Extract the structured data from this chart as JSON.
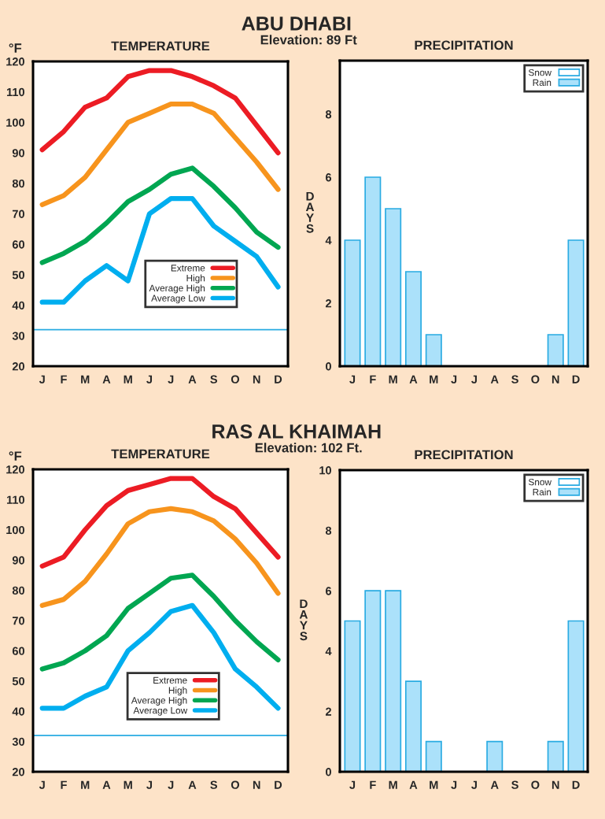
{
  "chart_data": [
    {
      "type": "line",
      "title": "TEMPERATURE",
      "ylabel": "°F",
      "annotations": [
        "ABU DHABI",
        "Elevation: 89 Ft"
      ],
      "categories": [
        "J",
        "F",
        "M",
        "A",
        "M",
        "J",
        "J",
        "A",
        "S",
        "O",
        "N",
        "D"
      ],
      "series": [
        {
          "name": "Extreme",
          "color": "#ec1c24",
          "values": [
            91,
            97,
            105,
            108,
            115,
            117,
            117,
            115,
            112,
            108,
            99,
            90
          ]
        },
        {
          "name": "High",
          "color": "#f7941d",
          "values": [
            73,
            76,
            82,
            91,
            100,
            103,
            106,
            106,
            103,
            95,
            87,
            78
          ]
        },
        {
          "name": "Average High",
          "color": "#00a651",
          "values": [
            54,
            57,
            61,
            67,
            74,
            78,
            83,
            85,
            79,
            72,
            64,
            59
          ]
        },
        {
          "name": "Average Low",
          "color": "#00aeef",
          "values": [
            41,
            41,
            48,
            53,
            48,
            70,
            75,
            75,
            66,
            61,
            56,
            46
          ]
        }
      ],
      "ylim": [
        20,
        120
      ],
      "yticks": [
        20,
        30,
        40,
        50,
        60,
        70,
        80,
        90,
        100,
        110,
        120
      ],
      "ref_lines": [
        {
          "axis": "y",
          "value": 32,
          "color": "#29abe2"
        }
      ],
      "legend": "bottom right",
      "grid": false
    },
    {
      "type": "bar",
      "title": "PRECIPITATION",
      "ylabel": "DAYS",
      "categories": [
        "J",
        "F",
        "M",
        "A",
        "M",
        "J",
        "J",
        "A",
        "S",
        "O",
        "N",
        "D"
      ],
      "series": [
        {
          "name": "Rain",
          "color": "#abe1fa",
          "values": [
            4,
            6,
            5,
            3,
            1,
            0,
            0,
            0,
            0,
            0,
            1,
            4
          ]
        },
        {
          "name": "Snow",
          "color": "#ffffff",
          "values": [
            null,
            null,
            null,
            null,
            null,
            null,
            null,
            null,
            null,
            null,
            null,
            null
          ]
        }
      ],
      "ylim": [
        0,
        9.7
      ],
      "yticks": [
        0,
        2,
        4,
        6,
        8
      ],
      "legend": "top right",
      "grid": false
    },
    {
      "type": "line",
      "title": "TEMPERATURE",
      "ylabel": "°F",
      "annotations": [
        "RAS AL KHAIMAH",
        "Elevation: 102 Ft."
      ],
      "categories": [
        "J",
        "F",
        "M",
        "A",
        "M",
        "J",
        "J",
        "A",
        "S",
        "O",
        "N",
        "D"
      ],
      "series": [
        {
          "name": "Extreme",
          "color": "#ec1c24",
          "values": [
            88,
            91,
            100,
            108,
            113,
            115,
            117,
            117,
            111,
            107,
            99,
            91
          ]
        },
        {
          "name": "High",
          "color": "#f7941d",
          "values": [
            75,
            77,
            83,
            92,
            102,
            106,
            107,
            106,
            103,
            97,
            89,
            79
          ]
        },
        {
          "name": "Average High",
          "color": "#00a651",
          "values": [
            54,
            56,
            60,
            65,
            74,
            79,
            84,
            85,
            78,
            70,
            63,
            57
          ]
        },
        {
          "name": "Average Low",
          "color": "#00aeef",
          "values": [
            41,
            41,
            45,
            48,
            60,
            66,
            73,
            75,
            66,
            54,
            48,
            41
          ]
        }
      ],
      "ylim": [
        20,
        120
      ],
      "yticks": [
        20,
        30,
        40,
        50,
        60,
        70,
        80,
        90,
        100,
        110,
        120
      ],
      "ref_lines": [
        {
          "axis": "y",
          "value": 32,
          "color": "#29abe2"
        }
      ],
      "legend": "bottom",
      "grid": false
    },
    {
      "type": "bar",
      "title": "PRECIPITATION",
      "ylabel": "DAYS",
      "categories": [
        "J",
        "F",
        "M",
        "A",
        "M",
        "J",
        "J",
        "A",
        "S",
        "O",
        "N",
        "D"
      ],
      "series": [
        {
          "name": "Rain",
          "color": "#abe1fa",
          "values": [
            5,
            6,
            6,
            3,
            1,
            0,
            0,
            1,
            0,
            0,
            1,
            5
          ]
        },
        {
          "name": "Snow",
          "color": "#ffffff",
          "values": [
            null,
            null,
            null,
            null,
            null,
            null,
            null,
            null,
            null,
            null,
            null,
            null
          ]
        }
      ],
      "ylim": [
        0,
        10
      ],
      "yticks": [
        0,
        2,
        4,
        6,
        8,
        10
      ],
      "legend": "top right",
      "grid": false
    }
  ]
}
